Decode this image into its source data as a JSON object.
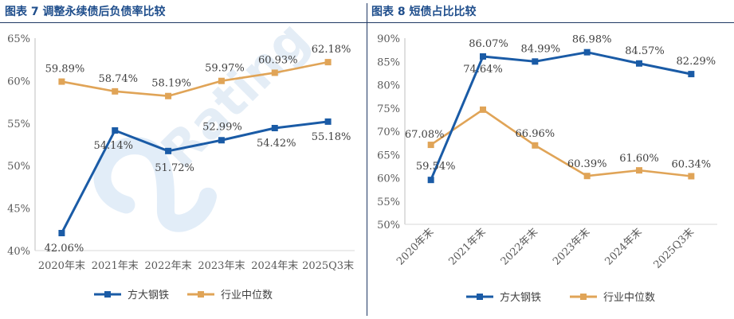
{
  "chart_data": [
    {
      "type": "line",
      "title": "图表 7 调整永续债后负债率比较",
      "categories": [
        "2020年末",
        "2021年末",
        "2022年末",
        "2023年末",
        "2024年末",
        "2025Q3末"
      ],
      "series": [
        {
          "name": "方大钢铁",
          "values": [
            42.06,
            54.14,
            51.72,
            52.99,
            54.42,
            55.18
          ],
          "color": "#1a5ba6"
        },
        {
          "name": "行业中位数",
          "values": [
            59.89,
            58.74,
            58.19,
            59.97,
            60.93,
            62.18
          ],
          "color": "#e0a457"
        }
      ],
      "ylim": [
        40,
        65
      ],
      "yticks": [
        40,
        45,
        50,
        55,
        60,
        65
      ],
      "value_suffix": "%",
      "xlabel": "",
      "ylabel": "",
      "legend": "bottom"
    },
    {
      "type": "line",
      "title": "图表 8 短债占比比较",
      "categories": [
        "2020年末",
        "2021年末",
        "2022年末",
        "2023年末",
        "2024年末",
        "2025Q3末"
      ],
      "series": [
        {
          "name": "方大钢铁",
          "values": [
            59.54,
            86.07,
            84.99,
            86.98,
            84.57,
            82.29
          ],
          "color": "#1a5ba6"
        },
        {
          "name": "行业中位数",
          "values": [
            67.08,
            74.64,
            66.96,
            60.39,
            61.6,
            60.34
          ],
          "color": "#e0a457"
        }
      ],
      "ylim": [
        50,
        90
      ],
      "yticks": [
        50,
        55,
        60,
        65,
        70,
        75,
        80,
        85,
        90
      ],
      "value_suffix": "%",
      "xlabel": "",
      "ylabel": "",
      "legend": "bottom"
    }
  ],
  "watermark": "Rating"
}
